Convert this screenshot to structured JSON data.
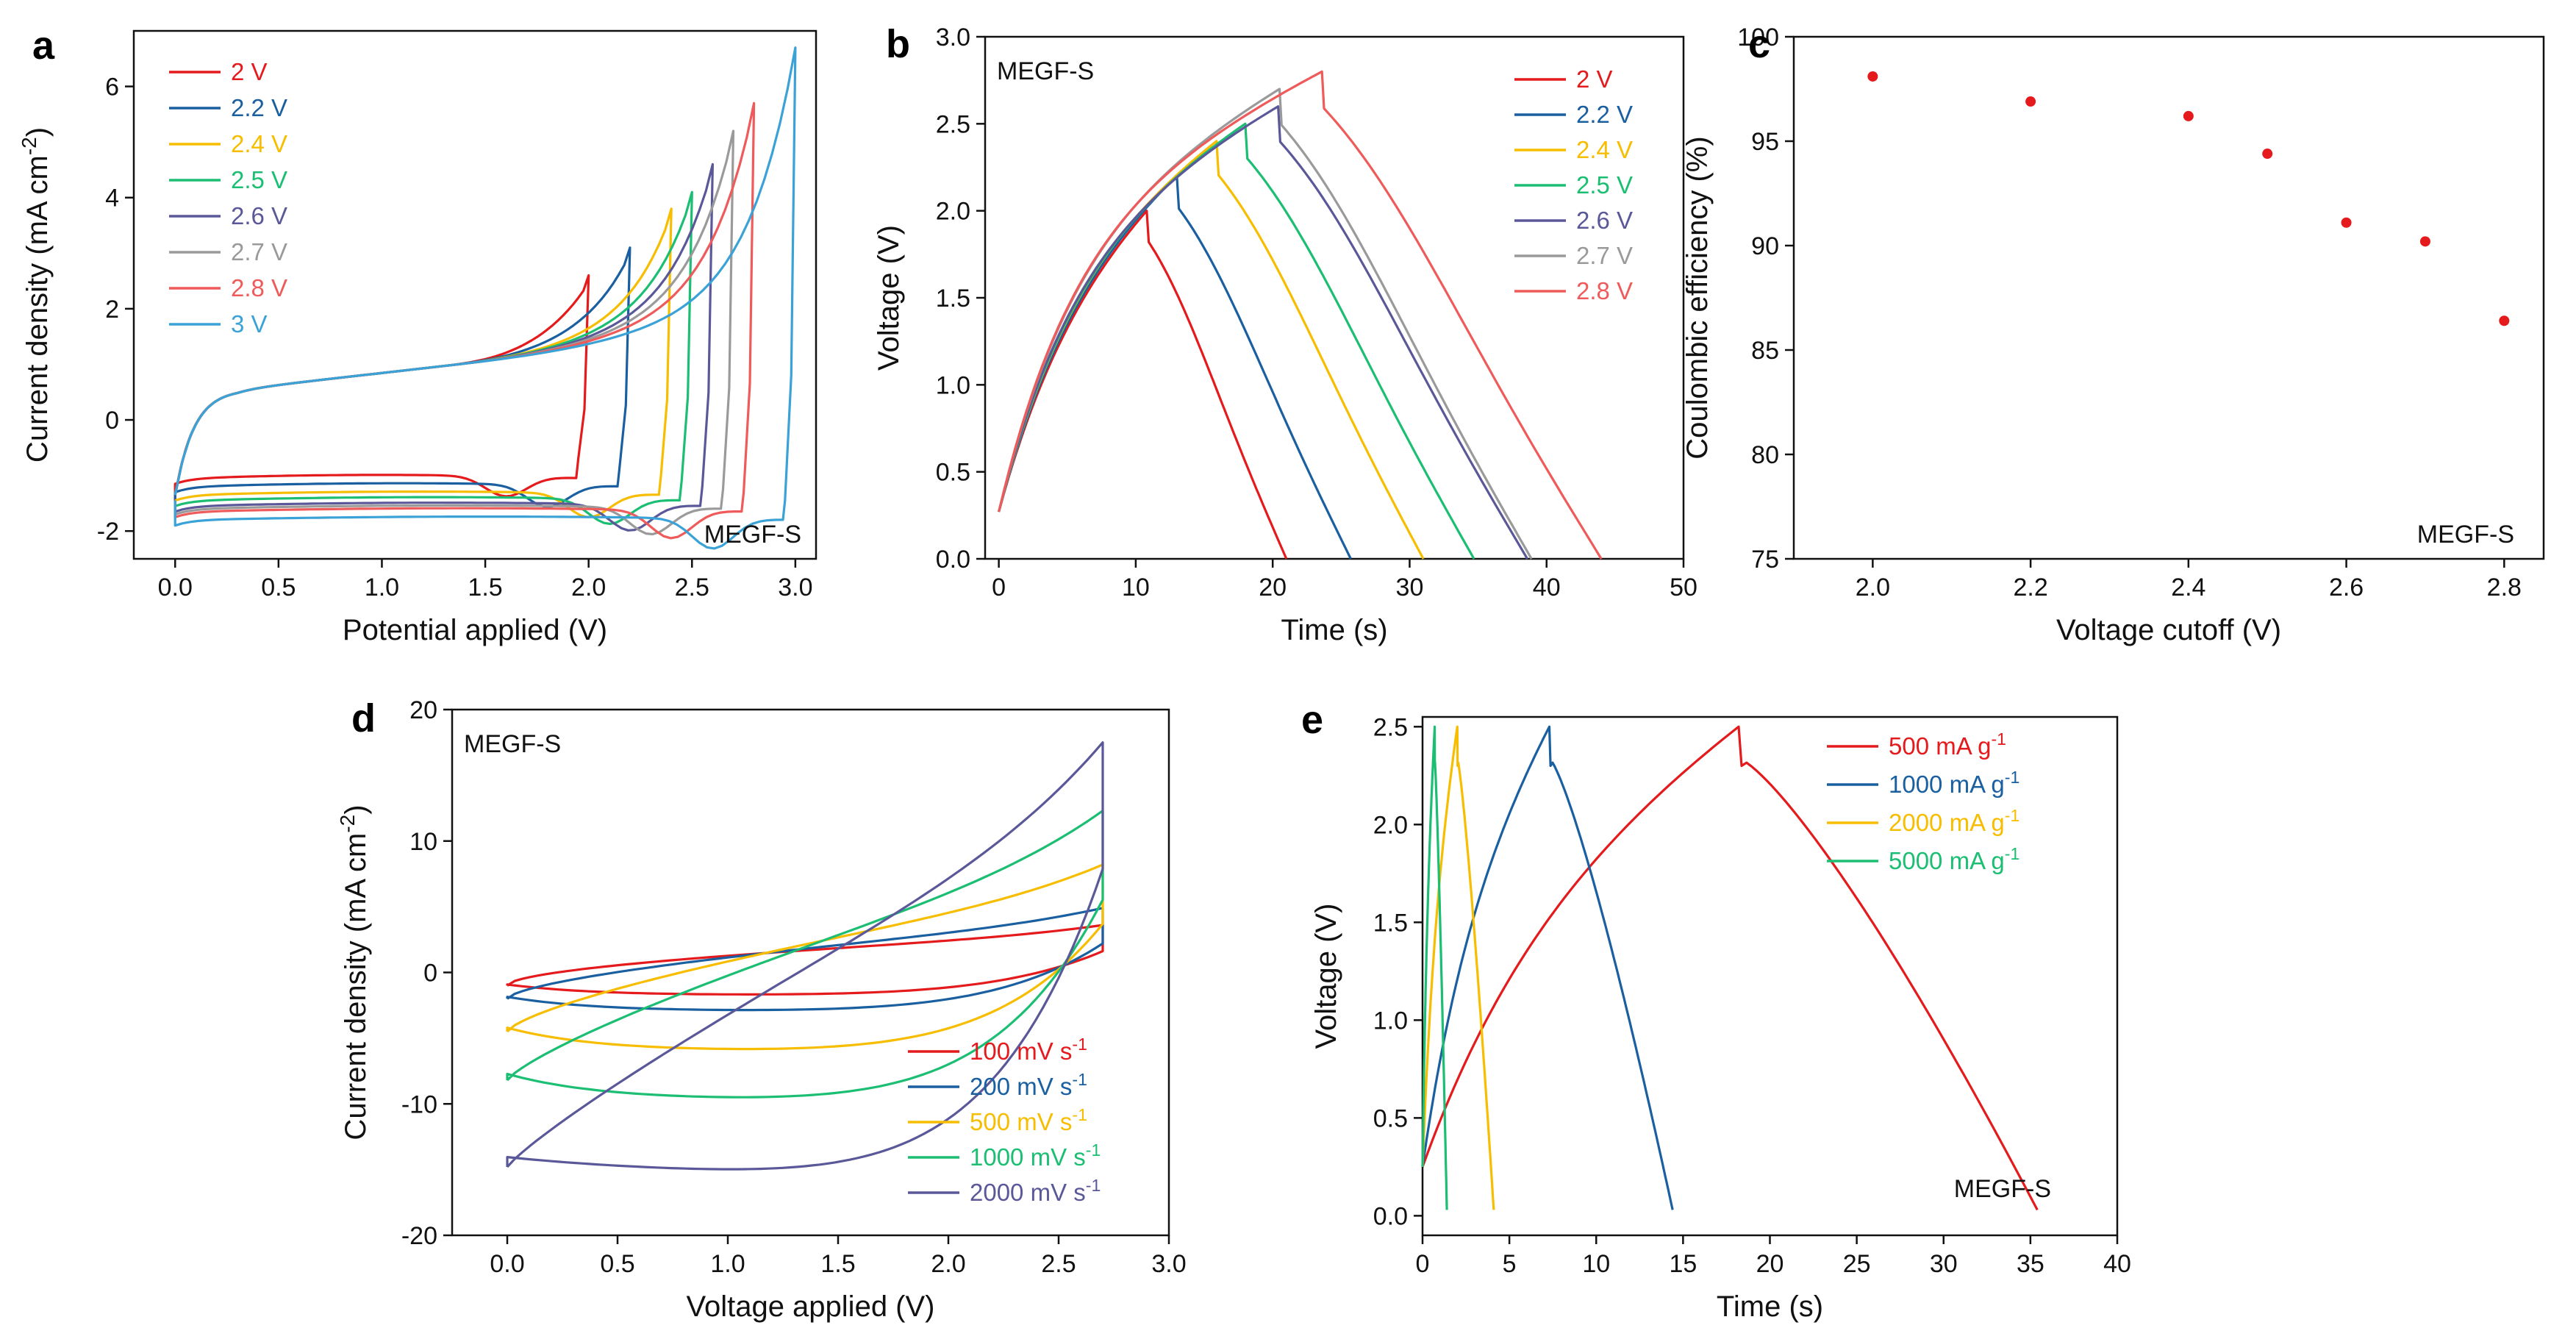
{
  "colors": {
    "red": "#e41a1c",
    "blue": "#1a5fa0",
    "gold": "#f7bd00",
    "green": "#1bbe72",
    "purple": "#5b5899",
    "gray": "#9a9a9a",
    "salmon": "#ef5a5a",
    "cyan": "#3aa2d6"
  },
  "chart_data": [
    {
      "panel": "a",
      "type": "line",
      "title": "",
      "xlabel": "Potential applied (V)",
      "ylabel": "Current density (mA cm",
      "ylabel_sup": "-2",
      "ylabel_end": ")",
      "xlim": [
        -0.2,
        3.1
      ],
      "ylim": [
        -2.5,
        7.0
      ],
      "xticks": [
        "0.0",
        "0.5",
        "1.0",
        "1.5",
        "2.0",
        "2.5",
        "3.0"
      ],
      "yticks": [
        "-2",
        "0",
        "2",
        "4",
        "6"
      ],
      "annotation": "MEGF-S",
      "legend_position": "top-left",
      "series": [
        {
          "name": "2 V",
          "color": "red",
          "vmax": 2.0,
          "imax": 2.6,
          "cmin": -1.05
        },
        {
          "name": "2.2 V",
          "color": "blue",
          "vmax": 2.2,
          "imax": 3.1,
          "cmin": -1.2
        },
        {
          "name": "2.4 V",
          "color": "gold",
          "vmax": 2.4,
          "imax": 3.8,
          "cmin": -1.35
        },
        {
          "name": "2.5 V",
          "color": "green",
          "vmax": 2.5,
          "imax": 4.1,
          "cmin": -1.45
        },
        {
          "name": "2.6 V",
          "color": "purple",
          "vmax": 2.6,
          "imax": 4.6,
          "cmin": -1.55
        },
        {
          "name": "2.7 V",
          "color": "gray",
          "vmax": 2.7,
          "imax": 5.2,
          "cmin": -1.6
        },
        {
          "name": "2.8 V",
          "color": "salmon",
          "vmax": 2.8,
          "imax": 5.7,
          "cmin": -1.65
        },
        {
          "name": "3 V",
          "color": "cyan",
          "vmax": 3.0,
          "imax": 6.7,
          "cmin": -1.8
        }
      ]
    },
    {
      "panel": "b",
      "type": "line",
      "title": "",
      "xlabel": "Time (s)",
      "ylabel": "Voltage (V)",
      "xlim": [
        -1,
        50
      ],
      "ylim": [
        0,
        3.0
      ],
      "xticks": [
        "0",
        "10",
        "20",
        "30",
        "40",
        "50"
      ],
      "yticks": [
        "0.0",
        "0.5",
        "1.0",
        "1.5",
        "2.0",
        "2.5",
        "3.0"
      ],
      "annotation": "MEGF-S",
      "legend_position": "top-right",
      "series": [
        {
          "name": "2 V",
          "color": "red",
          "vmax": 2.0,
          "tc": 10.8,
          "td": 21.0
        },
        {
          "name": "2.2 V",
          "color": "blue",
          "vmax": 2.2,
          "tc": 13.0,
          "td": 25.7
        },
        {
          "name": "2.4 V",
          "color": "gold",
          "vmax": 2.4,
          "tc": 15.9,
          "td": 31.0
        },
        {
          "name": "2.5 V",
          "color": "green",
          "vmax": 2.5,
          "tc": 18.0,
          "td": 34.7
        },
        {
          "name": "2.6 V",
          "color": "purple",
          "vmax": 2.6,
          "tc": 20.4,
          "td": 38.6
        },
        {
          "name": "2.7 V",
          "color": "gray",
          "vmax": 2.7,
          "tc": 20.5,
          "td": 38.9
        },
        {
          "name": "2.8 V",
          "color": "salmon",
          "vmax": 2.8,
          "tc": 23.6,
          "td": 44.0
        }
      ]
    },
    {
      "panel": "c",
      "type": "scatter",
      "title": "",
      "xlabel": "Voltage cutoff (V)",
      "ylabel": "Coulombic efficiency (%)",
      "xlim": [
        1.9,
        2.85
      ],
      "ylim": [
        75,
        100
      ],
      "xticks": [
        "2.0",
        "2.2",
        "2.4",
        "2.6",
        "2.8"
      ],
      "yticks": [
        "75",
        "80",
        "85",
        "90",
        "95",
        "100"
      ],
      "annotation": "MEGF-S",
      "color": "red",
      "x": [
        2.0,
        2.2,
        2.4,
        2.5,
        2.6,
        2.7,
        2.8
      ],
      "y": [
        98.1,
        96.9,
        96.2,
        94.4,
        91.1,
        90.2,
        86.4
      ]
    },
    {
      "panel": "d",
      "type": "line",
      "title": "",
      "xlabel": "Voltage applied (V)",
      "ylabel": "Current density (mA cm",
      "ylabel_sup": "-2",
      "ylabel_end": ")",
      "xlim": [
        -0.25,
        3.0
      ],
      "ylim": [
        -20,
        20
      ],
      "xticks": [
        "0.0",
        "0.5",
        "1.0",
        "1.5",
        "2.0",
        "2.5",
        "3.0"
      ],
      "yticks": [
        "-20",
        "-10",
        "0",
        "10",
        "20"
      ],
      "annotation": "MEGF-S",
      "legend_position": "bottom-right",
      "series": [
        {
          "name": "100 mV s",
          "sup": "-1",
          "color": "red",
          "imax": 3.6,
          "istart": -1.0,
          "cmin": -1.7
        },
        {
          "name": "200 mV s",
          "sup": "-1",
          "color": "blue",
          "imax": 4.9,
          "istart": -2.0,
          "cmin": -2.9
        },
        {
          "name": "500 mV s",
          "sup": "-1",
          "color": "gold",
          "imax": 8.2,
          "istart": -4.5,
          "cmin": -5.9
        },
        {
          "name": "1000 mV s",
          "sup": "-1",
          "color": "green",
          "imax": 12.3,
          "istart": -8.2,
          "cmin": -9.6
        },
        {
          "name": "2000 mV s",
          "sup": "-1",
          "color": "purple",
          "imax": 17.5,
          "istart": -14.8,
          "cmin": -15.1
        }
      ]
    },
    {
      "panel": "e",
      "type": "line",
      "title": "",
      "xlabel": "Time (s)",
      "ylabel": "Voltage (V)",
      "xlim": [
        0,
        40
      ],
      "ylim": [
        -0.1,
        2.55
      ],
      "xticks": [
        "0",
        "5",
        "10",
        "15",
        "20",
        "25",
        "30",
        "35",
        "40"
      ],
      "yticks": [
        "0.0",
        "0.5",
        "1.0",
        "1.5",
        "2.0",
        "2.5"
      ],
      "annotation": "MEGF-S",
      "legend_position": "top-right",
      "series": [
        {
          "name": "500 mA g",
          "sup": "-1",
          "color": "red",
          "tc": 18.2,
          "td": 35.4
        },
        {
          "name": "1000 mA g",
          "sup": "-1",
          "color": "blue",
          "tc": 7.3,
          "td": 14.4
        },
        {
          "name": "2000 mA g",
          "sup": "-1",
          "color": "gold",
          "tc": 2.0,
          "td": 4.1
        },
        {
          "name": "5000 mA g",
          "sup": "-1",
          "color": "green",
          "tc": 0.7,
          "td": 1.4
        }
      ]
    }
  ]
}
